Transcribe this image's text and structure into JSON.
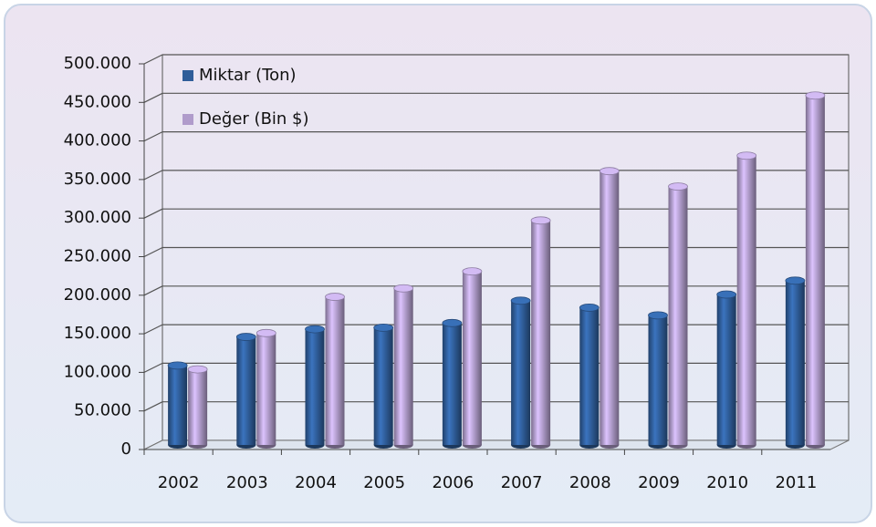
{
  "chart_data": {
    "type": "bar",
    "categories": [
      "2002",
      "2003",
      "2004",
      "2005",
      "2006",
      "2007",
      "2008",
      "2009",
      "2010",
      "2011"
    ],
    "series": [
      {
        "name": "Miktar (Ton)",
        "color": "#2f5d99",
        "values": [
          103000,
          140000,
          150000,
          152000,
          158000,
          187000,
          178000,
          168000,
          195000,
          213000
        ]
      },
      {
        "name": "Değer (Bin $)",
        "color": "#b09ccb",
        "values": [
          98000,
          145000,
          192000,
          203000,
          225000,
          291000,
          355000,
          335000,
          375000,
          453000
        ]
      }
    ],
    "ylim": [
      0,
      500000
    ],
    "yticks": [
      0,
      {
        "value": 50000,
        "label": "50.000"
      },
      {
        "value": 100000,
        "label": "100.000"
      },
      {
        "value": 150000,
        "label": "150.000"
      },
      {
        "value": 200000,
        "label": "200.000"
      },
      {
        "value": 250000,
        "label": "250.000"
      },
      {
        "value": 300000,
        "label": "300.000"
      },
      {
        "value": 350000,
        "label": "350.000"
      },
      {
        "value": 400000,
        "label": "400.000"
      },
      {
        "value": 450000,
        "label": "450.000"
      },
      {
        "value": 500000,
        "label": "500.000"
      }
    ],
    "grid": true,
    "legend": "top-left"
  }
}
